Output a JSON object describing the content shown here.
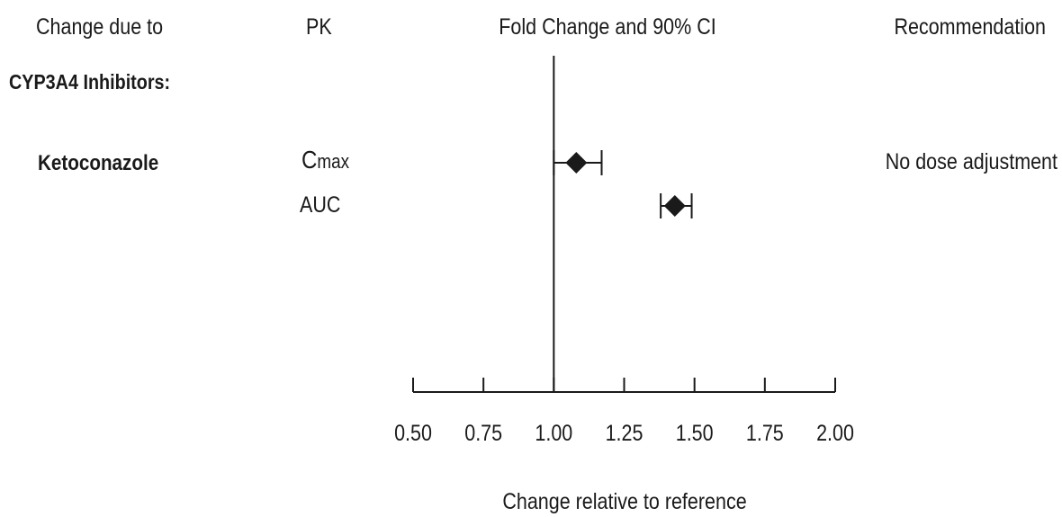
{
  "chart_data": {
    "type": "forest",
    "header": {
      "change_due_to": "Change due to",
      "pk": "PK",
      "fold_change": "Fold Change and 90% CI",
      "recommendation": "Recommendation"
    },
    "group_label": "CYP3A4 Inhibitors:",
    "rows": [
      {
        "drug": "Ketoconazole",
        "recommendation": "No dose adjustment",
        "measures": [
          {
            "pk": "Cmax",
            "pk_main": "C",
            "pk_sub": "max",
            "estimate": 1.08,
            "ci": [
              1.0,
              1.17
            ]
          },
          {
            "pk": "AUC",
            "estimate": 1.43,
            "ci": [
              1.38,
              1.49
            ]
          }
        ]
      }
    ],
    "reference_line": 1.0,
    "xlim": [
      0.5,
      2.0
    ],
    "x_ticks": [
      0.5,
      0.75,
      1.0,
      1.25,
      1.5,
      1.75,
      2.0
    ],
    "x_tick_labels": [
      "0.50",
      "0.75",
      "1.00",
      "1.25",
      "1.50",
      "1.75",
      "2.00"
    ],
    "xlabel": "Change relative to reference",
    "colors": {
      "marker": "#1a1a1a",
      "line": "#1a1a1a"
    }
  }
}
